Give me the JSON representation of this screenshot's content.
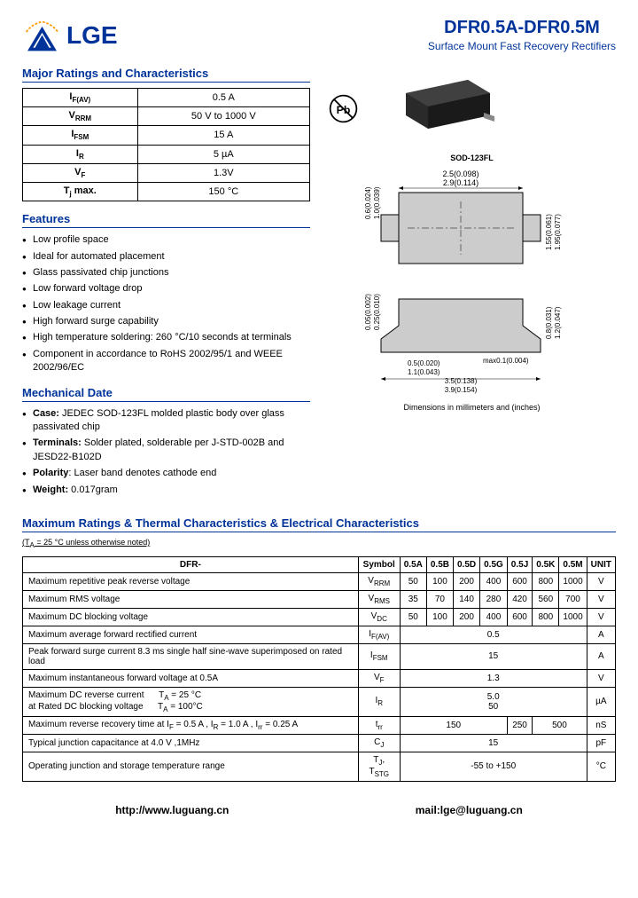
{
  "header": {
    "logo": "LGE",
    "partNumber": "DFR0.5A-DFR0.5M",
    "subtitle": "Surface Mount Fast Recovery Rectifiers"
  },
  "ratingsTitle": "Major Ratings and Characteristics",
  "ratings": [
    {
      "sym": "I<sub>F(AV)</sub>",
      "val": "0.5 A"
    },
    {
      "sym": "V<sub>RRM</sub>",
      "val": "50 V to 1000 V"
    },
    {
      "sym": "I<sub>FSM</sub>",
      "val": "15 A"
    },
    {
      "sym": "I<sub>R</sub>",
      "val": "5 µA"
    },
    {
      "sym": "V<sub>F</sub>",
      "val": "1.3V"
    },
    {
      "sym": "T<sub>j</sub> max.",
      "val": "150 °C"
    }
  ],
  "featuresTitle": "Features",
  "features": [
    "Low profile space",
    "Ideal for automated placement",
    "Glass passivated chip junctions",
    "Low forward voltage drop",
    "Low leakage current",
    "High forward surge capability",
    "High temperature soldering: 260 °C/10 seconds at terminals",
    "Component in accordance to RoHS 2002/95/1 and WEEE 2002/96/EC"
  ],
  "mechTitle": "Mechanical Date",
  "mech": [
    "<b>Case:</b> JEDEC SOD-123FL molded plastic body over glass passivated chip",
    "<b>Terminals:</b> Solder plated, solderable per J-STD-002B and JESD22-B102D",
    "<b>Polarity</b>: Laser band denotes cathode end",
    "<b>Weight:</b> 0.017gram"
  ],
  "pkgTitle": "SOD-123FL",
  "dimNote": "Dimensions in millimeters and (inches)",
  "maxTitle": "Maximum Ratings & Thermal Characteristics & Electrical Characteristics",
  "maxNote": "(T<sub>A</sub> = 25 °C unless otherwise noted)",
  "maxHeaders": [
    "DFR-",
    "Symbol",
    "0.5A",
    "0.5B",
    "0.5D",
    "0.5G",
    "0.5J",
    "0.5K",
    "0.5M",
    "UNIT"
  ],
  "maxRows": [
    {
      "desc": "Maximum repetitive peak reverse voltage",
      "sym": "V<sub>RRM</sub>",
      "vals": [
        "50",
        "100",
        "200",
        "400",
        "600",
        "800",
        "1000"
      ],
      "unit": "V"
    },
    {
      "desc": "Maximum RMS voltage",
      "sym": "V<sub>RMS</sub>",
      "vals": [
        "35",
        "70",
        "140",
        "280",
        "420",
        "560",
        "700"
      ],
      "unit": "V"
    },
    {
      "desc": "Maximum DC blocking voltage",
      "sym": "V<sub>DC</sub>",
      "vals": [
        "50",
        "100",
        "200",
        "400",
        "600",
        "800",
        "1000"
      ],
      "unit": "V"
    },
    {
      "desc": "Maximum average forward rectified current",
      "sym": "I<sub>F(AV)</sub>",
      "span": "0.5",
      "unit": "A"
    },
    {
      "desc": "Peak forward surge current 8.3 ms single half sine-wave superimposed on rated load",
      "sym": "I<sub>FSM</sub>",
      "span": "15",
      "unit": "A"
    },
    {
      "desc": "Maximum instantaneous forward voltage at 0.5A",
      "sym": "V<sub>F</sub>",
      "span": "1.3",
      "unit": "V"
    },
    {
      "desc": "Maximum DC reverse current &nbsp;&nbsp;&nbsp;&nbsp; T<sub>A</sub> = 25 °C<br>at Rated DC blocking voltage &nbsp;&nbsp;&nbsp;&nbsp; T<sub>A</sub> = 100°C",
      "sym": "I<sub>R</sub>",
      "span": "5.0<br>50",
      "unit": "µA"
    },
    {
      "desc": "Maximum reverse recovery time at I<sub>F</sub> = 0.5 A , I<sub>R</sub> = 1.0 A , I<sub>rr</sub> = 0.25 A",
      "sym": "t<sub>rr</sub>",
      "multi": [
        {
          "v": "150",
          "c": 4
        },
        {
          "v": "250",
          "c": 1
        },
        {
          "v": "500",
          "c": 2
        }
      ],
      "unit": "nS"
    },
    {
      "desc": "Typical junction capacitance at 4.0 V ,1MHz",
      "sym": "C<sub>J</sub>",
      "span": "15",
      "unit": "pF"
    },
    {
      "desc": "Operating junction and storage temperature range",
      "sym": "T<sub>J</sub>, T<sub>STG</sub>",
      "span": "-55 to +150",
      "unit": "°C"
    }
  ],
  "footer": {
    "url": "http://www.luguang.cn",
    "mail": "mail:lge@luguang.cn"
  }
}
